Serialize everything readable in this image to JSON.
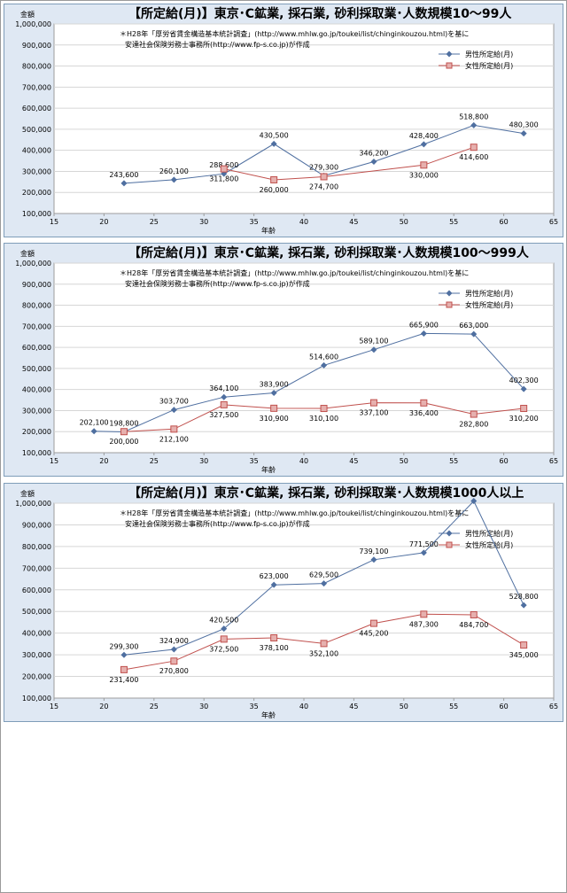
{
  "chart_data": [
    {
      "type": "line",
      "title": "【所定給(月)】東京･C鉱業, 採石業, 砂利採取業･人数規模10～99人",
      "ylabel": "金額",
      "xlabel": "年齢",
      "note_line1": "＊H28年「厚労省賃金構造基本統計調査」(http://www.mhlw.go.jp/toukei/list/chinginkouzou.html)を基に",
      "note_line2": "安達社会保険労務士事務所(http://www.fp-s.co.jp)が作成",
      "xlim": [
        15,
        65
      ],
      "ylim": [
        100000,
        1000000
      ],
      "x_ticks": [
        15,
        20,
        25,
        30,
        35,
        40,
        45,
        50,
        55,
        60,
        65
      ],
      "y_ticks": [
        100000,
        200000,
        300000,
        400000,
        500000,
        600000,
        700000,
        800000,
        900000,
        1000000
      ],
      "x_tick_labels": [
        "15",
        "20",
        "25",
        "30",
        "35",
        "40",
        "45",
        "50",
        "55",
        "60",
        "65"
      ],
      "y_tick_labels": [
        "100,000",
        "200,000",
        "300,000",
        "400,000",
        "500,000",
        "600,000",
        "700,000",
        "800,000",
        "900,000",
        "1,000,000"
      ],
      "legend_position": "top-right",
      "series": [
        {
          "name": "男性所定給(月)",
          "color": "#4f6fa0",
          "marker": "diamond",
          "x": [
            22,
            27,
            32,
            37,
            42,
            47,
            52,
            57,
            62
          ],
          "y": [
            243600,
            260100,
            288600,
            430500,
            279300,
            346200,
            428400,
            518800,
            480300
          ],
          "labels": [
            "243,600",
            "260,100",
            "288,600",
            "430,500",
            "279,300",
            "346,200",
            "428,400",
            "518,800",
            "480,300"
          ],
          "label_pos": [
            "above",
            "above",
            "above",
            "above",
            "above",
            "above",
            "above",
            "above",
            "above"
          ]
        },
        {
          "name": "女性所定給(月)",
          "color": "#c0504d",
          "marker": "square",
          "x": [
            32,
            37,
            42,
            52,
            57
          ],
          "y": [
            311800,
            260000,
            274700,
            330000,
            414600
          ],
          "labels": [
            "311,800",
            "260,000",
            "274,700",
            "330,000",
            "414,600"
          ],
          "label_pos": [
            "below",
            "below",
            "below",
            "below",
            "below"
          ]
        }
      ]
    },
    {
      "type": "line",
      "title": "【所定給(月)】東京･C鉱業, 採石業, 砂利採取業･人数規模100～999人",
      "ylabel": "金額",
      "xlabel": "年齢",
      "note_line1": "＊H28年「厚労省賃金構造基本統計調査」(http://www.mhlw.go.jp/toukei/list/chinginkouzou.html)を基に",
      "note_line2": "安達社会保険労務士事務所(http://www.fp-s.co.jp)が作成",
      "xlim": [
        15,
        65
      ],
      "ylim": [
        100000,
        1000000
      ],
      "x_ticks": [
        15,
        20,
        25,
        30,
        35,
        40,
        45,
        50,
        55,
        60,
        65
      ],
      "y_ticks": [
        100000,
        200000,
        300000,
        400000,
        500000,
        600000,
        700000,
        800000,
        900000,
        1000000
      ],
      "x_tick_labels": [
        "15",
        "20",
        "25",
        "30",
        "35",
        "40",
        "45",
        "50",
        "55",
        "60",
        "65"
      ],
      "y_tick_labels": [
        "100,000",
        "200,000",
        "300,000",
        "400,000",
        "500,000",
        "600,000",
        "700,000",
        "800,000",
        "900,000",
        "1,000,000"
      ],
      "legend_position": "top-right",
      "series": [
        {
          "name": "男性所定給(月)",
          "color": "#4f6fa0",
          "marker": "diamond",
          "x": [
            19,
            22,
            27,
            32,
            37,
            42,
            47,
            52,
            57,
            62
          ],
          "y": [
            202100,
            198800,
            303700,
            364100,
            383900,
            514600,
            589100,
            665900,
            663000,
            402300
          ],
          "labels": [
            "202,100",
            "198,800",
            "303,700",
            "364,100",
            "383,900",
            "514,600",
            "589,100",
            "665,900",
            "663,000",
            "402,300"
          ],
          "label_pos": [
            "above",
            "above",
            "above",
            "above",
            "above",
            "above",
            "above",
            "above",
            "above",
            "above"
          ]
        },
        {
          "name": "女性所定給(月)",
          "color": "#c0504d",
          "marker": "square",
          "x": [
            22,
            27,
            32,
            37,
            42,
            47,
            52,
            57,
            62
          ],
          "y": [
            200000,
            212100,
            327500,
            310900,
            310100,
            337100,
            336400,
            282800,
            310200
          ],
          "labels": [
            "200,000",
            "212,100",
            "327,500",
            "310,900",
            "310,100",
            "337,100",
            "336,400",
            "282,800",
            "310,200"
          ],
          "label_pos": [
            "below",
            "below",
            "below",
            "below",
            "below",
            "below",
            "below",
            "below",
            "below"
          ]
        }
      ]
    },
    {
      "type": "line",
      "title": "【所定給(月)】東京･C鉱業, 採石業, 砂利採取業･人数規模1000人以上",
      "ylabel": "金額",
      "xlabel": "年齢",
      "note_line1": "＊H28年「厚労省賃金構造基本統計調査」(http://www.mhlw.go.jp/toukei/list/chinginkouzou.html)を基に",
      "note_line2": "安達社会保険労務士事務所(http://www.fp-s.co.jp)が作成",
      "xlim": [
        15,
        65
      ],
      "ylim": [
        100000,
        1000000
      ],
      "x_ticks": [
        15,
        20,
        25,
        30,
        35,
        40,
        45,
        50,
        55,
        60,
        65
      ],
      "y_ticks": [
        100000,
        200000,
        300000,
        400000,
        500000,
        600000,
        700000,
        800000,
        900000,
        1000000
      ],
      "x_tick_labels": [
        "15",
        "20",
        "25",
        "30",
        "35",
        "40",
        "45",
        "50",
        "55",
        "60",
        "65"
      ],
      "y_tick_labels": [
        "100,000",
        "200,000",
        "300,000",
        "400,000",
        "500,000",
        "600,000",
        "700,000",
        "800,000",
        "900,000",
        "1,000,000"
      ],
      "legend_position": "top-right",
      "series": [
        {
          "name": "男性所定給(月)",
          "color": "#4f6fa0",
          "marker": "diamond",
          "x": [
            22,
            27,
            32,
            37,
            42,
            47,
            52,
            57,
            62
          ],
          "y": [
            299300,
            324900,
            420500,
            623000,
            629500,
            739100,
            771500,
            1010000,
            528800
          ],
          "labels": [
            "299,300",
            "324,900",
            "420,500",
            "623,000",
            "629,500",
            "739,100",
            "771,500",
            "",
            "528,800"
          ],
          "label_pos": [
            "above",
            "above",
            "above",
            "above",
            "above",
            "above",
            "above",
            "above",
            "above"
          ]
        },
        {
          "name": "女性所定給(月)",
          "color": "#c0504d",
          "marker": "square",
          "x": [
            22,
            27,
            32,
            37,
            42,
            47,
            52,
            57,
            62
          ],
          "y": [
            231400,
            270800,
            372500,
            378100,
            352100,
            445200,
            487300,
            484700,
            345000
          ],
          "labels": [
            "231,400",
            "270,800",
            "372,500",
            "378,100",
            "352,100",
            "445,200",
            "487,300",
            "484,700",
            "345,000"
          ],
          "label_pos": [
            "below",
            "below",
            "below",
            "below",
            "below",
            "below",
            "below",
            "below",
            "below"
          ]
        }
      ]
    }
  ]
}
